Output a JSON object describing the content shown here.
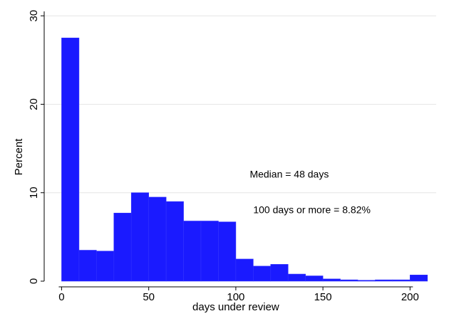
{
  "chart_data": {
    "type": "bar",
    "xlabel": "days under review",
    "ylabel": "Percent",
    "xlim": [
      -10,
      215
    ],
    "ylim": [
      0,
      30.5
    ],
    "bin_width": 10,
    "bins": [
      {
        "start": 0,
        "value": 27.5
      },
      {
        "start": 10,
        "value": 3.5
      },
      {
        "start": 20,
        "value": 3.4
      },
      {
        "start": 30,
        "value": 7.7
      },
      {
        "start": 40,
        "value": 10.0
      },
      {
        "start": 50,
        "value": 9.5
      },
      {
        "start": 60,
        "value": 9.0
      },
      {
        "start": 70,
        "value": 6.8
      },
      {
        "start": 80,
        "value": 6.8
      },
      {
        "start": 90,
        "value": 6.7
      },
      {
        "start": 100,
        "value": 2.5
      },
      {
        "start": 110,
        "value": 1.7
      },
      {
        "start": 120,
        "value": 1.9
      },
      {
        "start": 130,
        "value": 0.8
      },
      {
        "start": 140,
        "value": 0.6
      },
      {
        "start": 150,
        "value": 0.25
      },
      {
        "start": 160,
        "value": 0.15
      },
      {
        "start": 170,
        "value": 0.1
      },
      {
        "start": 180,
        "value": 0.15
      },
      {
        "start": 190,
        "value": 0.15
      },
      {
        "start": 200,
        "value": 0.7
      }
    ],
    "x_ticks": [
      0,
      50,
      100,
      150,
      200
    ],
    "y_ticks": [
      0,
      10,
      20,
      30
    ],
    "grid": true,
    "bar_color": "#1a1aff",
    "annotations": [
      {
        "text": "Median = 48 days",
        "x": 108,
        "y": 11.7
      },
      {
        "text": "100 days or more = 8.82%",
        "x": 110,
        "y": 7.7
      }
    ]
  }
}
